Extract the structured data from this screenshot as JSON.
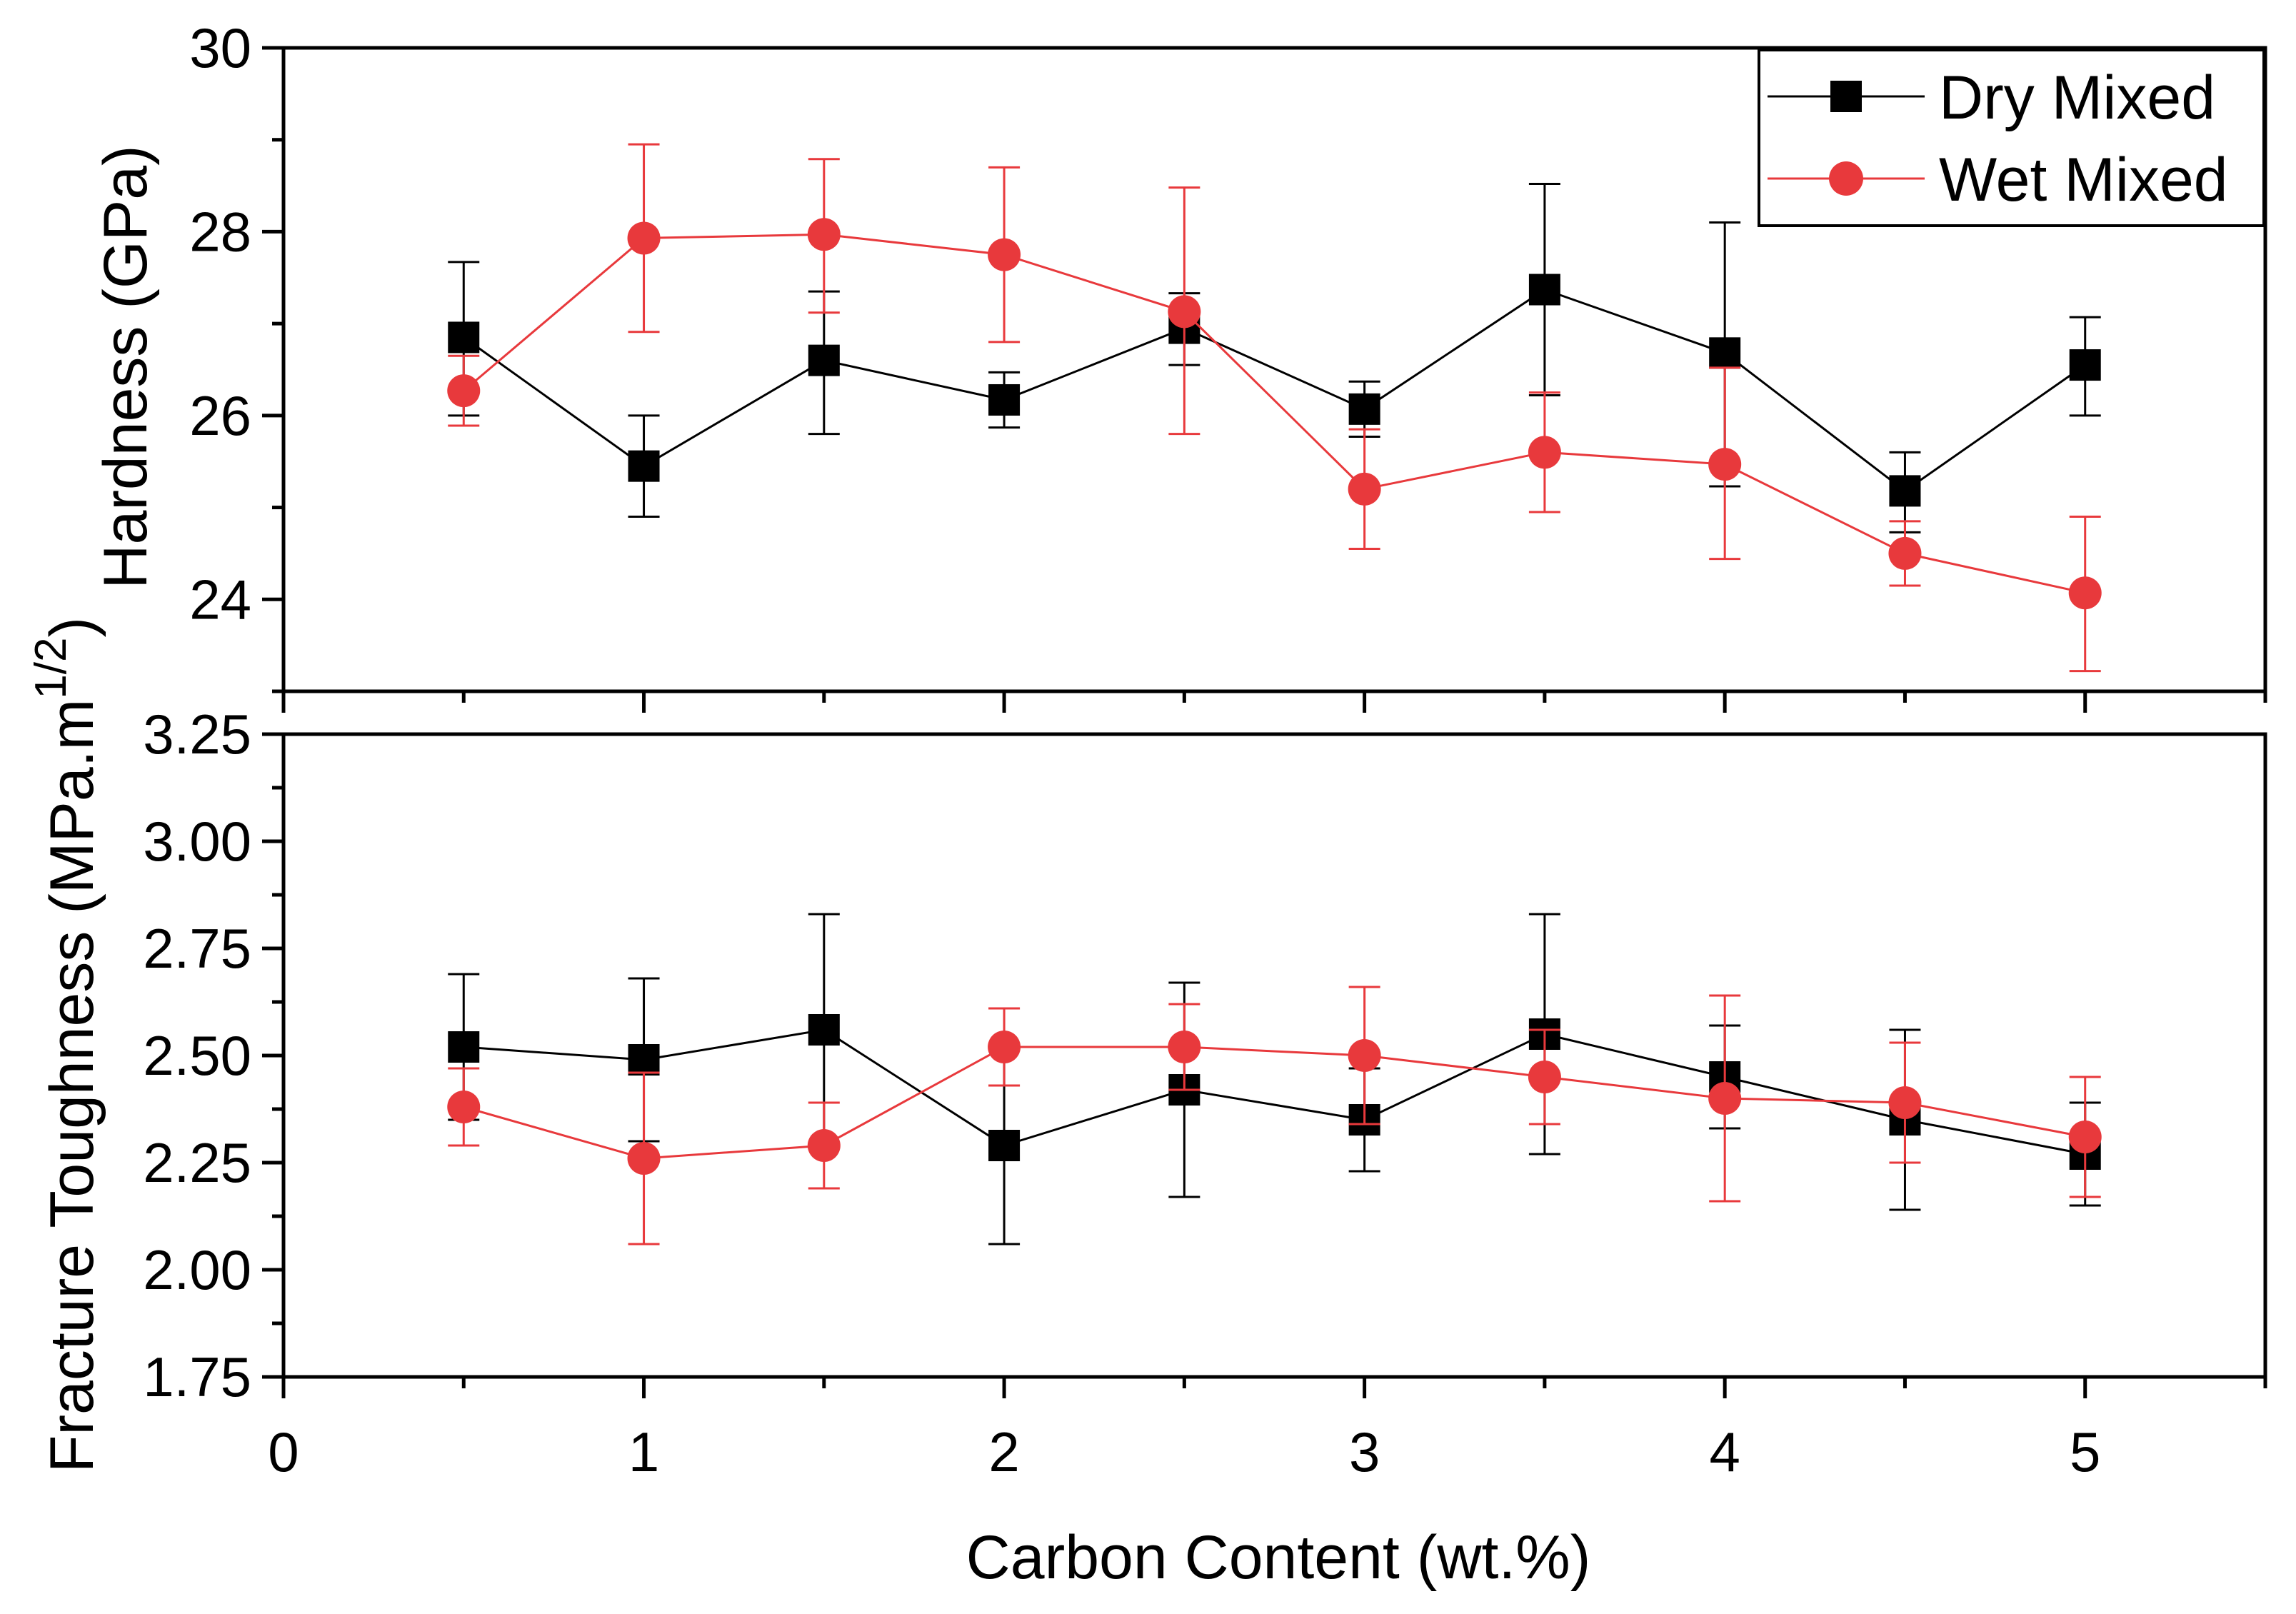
{
  "chart_data": [
    {
      "type": "line",
      "panel": "top",
      "ylabel": "Hardness (GPa)",
      "ylim": [
        23.0,
        30.0
      ],
      "yticks": [
        24,
        26,
        28,
        30
      ],
      "ytick_labels": [
        "24",
        "26",
        "28",
        "30"
      ],
      "x": [
        0.5,
        1,
        1.5,
        2,
        2.5,
        3,
        3.5,
        4,
        4.5,
        5
      ],
      "series": [
        {
          "name": "Dry Mixed",
          "color": "#000000",
          "marker": "square",
          "values": [
            26.85,
            25.45,
            26.6,
            26.17,
            26.95,
            26.07,
            27.37,
            26.68,
            25.18,
            26.55
          ],
          "err_low": [
            0.85,
            0.55,
            0.8,
            0.3,
            0.4,
            0.3,
            1.15,
            1.45,
            0.45,
            0.55
          ],
          "err_high": [
            0.82,
            0.55,
            0.75,
            0.3,
            0.38,
            0.3,
            1.15,
            1.42,
            0.42,
            0.52
          ]
        },
        {
          "name": "Wet Mixed",
          "color": "#e8393c",
          "marker": "circle",
          "values": [
            26.27,
            27.93,
            27.97,
            27.75,
            27.13,
            25.2,
            25.6,
            25.47,
            24.5,
            24.07
          ],
          "err_low": [
            0.38,
            1.02,
            0.85,
            0.95,
            1.33,
            0.65,
            0.65,
            1.03,
            0.35,
            0.85
          ],
          "err_high": [
            0.38,
            1.02,
            0.82,
            0.95,
            1.35,
            0.65,
            0.65,
            1.05,
            0.35,
            0.83
          ]
        }
      ]
    },
    {
      "type": "line",
      "panel": "bottom",
      "ylabel_main": "Fracture Toughness (MPa.m",
      "ylabel_sup": "1/2",
      "ylabel_close": ")",
      "ylim": [
        1.75,
        3.25
      ],
      "yticks": [
        1.75,
        2.0,
        2.25,
        2.5,
        2.75,
        3.0,
        3.25
      ],
      "ytick_labels": [
        "1.75",
        "2.00",
        "2.25",
        "2.50",
        "2.75",
        "3.00",
        "3.25"
      ],
      "x": [
        0.5,
        1,
        1.5,
        2,
        2.5,
        3,
        3.5,
        4,
        4.5,
        5
      ],
      "series": [
        {
          "name": "Dry Mixed",
          "color": "#000000",
          "marker": "square",
          "values": [
            2.52,
            2.49,
            2.56,
            2.29,
            2.42,
            2.35,
            2.55,
            2.45,
            2.35,
            2.27
          ],
          "err_low": [
            0.17,
            0.19,
            0.27,
            0.23,
            0.25,
            0.12,
            0.28,
            0.12,
            0.21,
            0.12
          ],
          "err_high": [
            0.17,
            0.19,
            0.27,
            0.23,
            0.25,
            0.12,
            0.28,
            0.12,
            0.21,
            0.12
          ]
        },
        {
          "name": "Wet Mixed",
          "color": "#e8393c",
          "marker": "circle",
          "values": [
            2.38,
            2.26,
            2.29,
            2.52,
            2.52,
            2.5,
            2.45,
            2.4,
            2.39,
            2.31
          ],
          "err_low": [
            0.09,
            0.2,
            0.1,
            0.09,
            0.1,
            0.16,
            0.11,
            0.24,
            0.14,
            0.14
          ],
          "err_high": [
            0.09,
            0.2,
            0.1,
            0.09,
            0.1,
            0.16,
            0.11,
            0.24,
            0.14,
            0.14
          ]
        }
      ]
    }
  ],
  "xaxis": {
    "xlabel": "Carbon Content (wt.%)",
    "xlim": [
      0,
      5.5
    ],
    "xticks": [
      0,
      1,
      2,
      3,
      4,
      5
    ],
    "xtick_labels": [
      "0",
      "1",
      "2",
      "3",
      "4",
      "5"
    ]
  },
  "legend": {
    "position": "top-right",
    "entries": [
      "Dry Mixed",
      "Wet Mixed"
    ]
  }
}
